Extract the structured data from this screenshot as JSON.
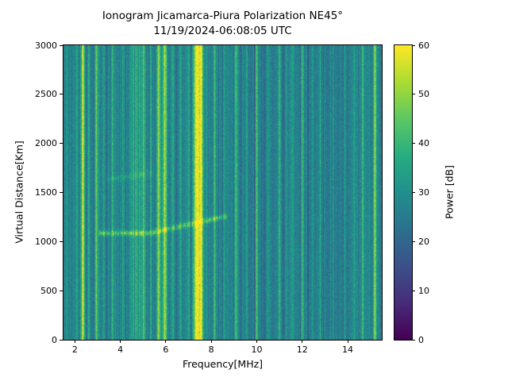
{
  "chart_data": {
    "type": "heatmap",
    "title": "Ionogram Jicamarca-Piura Polarization NE45°",
    "subtitle": "11/19/2024-06:08:05 UTC",
    "xlabel": "Frequency[MHz]",
    "ylabel": "Virtual Distance[Km]",
    "xlim": [
      1.5,
      15.5
    ],
    "ylim": [
      0,
      3000
    ],
    "xticks": [
      2,
      4,
      6,
      8,
      10,
      12,
      14
    ],
    "yticks": [
      0,
      500,
      1000,
      1500,
      2000,
      2500,
      3000
    ],
    "grid": false,
    "colorbar": {
      "label": "Power [dB]",
      "range": [
        0,
        60
      ],
      "ticks": [
        0,
        10,
        20,
        30,
        40,
        50,
        60
      ],
      "colormap": "viridis",
      "position": "right"
    },
    "background_power_db": {
      "mean": 27,
      "noise_std": 3.5
    },
    "rfi_lines": [
      {
        "freq_mhz": 2.08,
        "power_db": 9,
        "width_mhz": 0.03
      },
      {
        "freq_mhz": 2.35,
        "power_db": 27,
        "width_mhz": 0.05
      },
      {
        "freq_mhz": 2.62,
        "power_db": 12,
        "width_mhz": 0.03
      },
      {
        "freq_mhz": 2.95,
        "power_db": 18,
        "width_mhz": 0.04
      },
      {
        "freq_mhz": 3.28,
        "power_db": 10,
        "width_mhz": 0.03
      },
      {
        "freq_mhz": 3.65,
        "power_db": 8,
        "width_mhz": 0.03
      },
      {
        "freq_mhz": 4.12,
        "power_db": 9,
        "width_mhz": 0.03
      },
      {
        "freq_mhz": 4.6,
        "power_db": 9,
        "width_mhz": 0.12
      },
      {
        "freq_mhz": 4.85,
        "power_db": 8,
        "width_mhz": 0.1
      },
      {
        "freq_mhz": 5.05,
        "power_db": 15,
        "width_mhz": 0.04
      },
      {
        "freq_mhz": 5.35,
        "power_db": 10,
        "width_mhz": 0.03
      },
      {
        "freq_mhz": 5.68,
        "power_db": 24,
        "width_mhz": 0.05
      },
      {
        "freq_mhz": 5.95,
        "power_db": 27,
        "width_mhz": 0.06
      },
      {
        "freq_mhz": 6.3,
        "power_db": 12,
        "width_mhz": 0.03
      },
      {
        "freq_mhz": 6.65,
        "power_db": 10,
        "width_mhz": 0.03
      },
      {
        "freq_mhz": 7.0,
        "power_db": 11,
        "width_mhz": 0.03
      },
      {
        "freq_mhz": 7.35,
        "power_db": 32,
        "width_mhz": 0.1
      },
      {
        "freq_mhz": 7.55,
        "power_db": 30,
        "width_mhz": 0.07
      },
      {
        "freq_mhz": 8.15,
        "power_db": 15,
        "width_mhz": 0.04
      },
      {
        "freq_mhz": 8.55,
        "power_db": 9,
        "width_mhz": 0.03
      },
      {
        "freq_mhz": 9.1,
        "power_db": 17,
        "width_mhz": 0.04
      },
      {
        "freq_mhz": 9.55,
        "power_db": 8,
        "width_mhz": 0.03
      },
      {
        "freq_mhz": 10.0,
        "power_db": 19,
        "width_mhz": 0.04
      },
      {
        "freq_mhz": 10.5,
        "power_db": 11,
        "width_mhz": 0.03
      },
      {
        "freq_mhz": 11.0,
        "power_db": 13,
        "width_mhz": 0.04
      },
      {
        "freq_mhz": 11.55,
        "power_db": 9,
        "width_mhz": 0.03
      },
      {
        "freq_mhz": 12.0,
        "power_db": 13,
        "width_mhz": 0.04
      },
      {
        "freq_mhz": 12.45,
        "power_db": 8,
        "width_mhz": 0.03
      },
      {
        "freq_mhz": 12.8,
        "power_db": 11,
        "width_mhz": 0.03
      },
      {
        "freq_mhz": 13.35,
        "power_db": 9,
        "width_mhz": 0.03
      },
      {
        "freq_mhz": 13.85,
        "power_db": 8,
        "width_mhz": 0.03
      },
      {
        "freq_mhz": 14.3,
        "power_db": 9,
        "width_mhz": 0.03
      },
      {
        "freq_mhz": 14.68,
        "power_db": 19,
        "width_mhz": 0.05
      },
      {
        "freq_mhz": 15.2,
        "power_db": 23,
        "width_mhz": 0.05
      }
    ],
    "echo_traces": [
      {
        "name": "main-echo",
        "freq_range_mhz": [
          3.05,
          8.7
        ],
        "flat_until_mhz": 5.3,
        "alt_start_km": 1085,
        "alt_end_km": 1260,
        "width_km": 26,
        "power_db": 15
      },
      {
        "name": "faint-upper-echo",
        "freq_range_mhz": [
          3.4,
          5.4
        ],
        "flat_until_mhz": 3.4,
        "alt_start_km": 1630,
        "alt_end_km": 1700,
        "width_km": 30,
        "power_db": 5
      }
    ]
  }
}
